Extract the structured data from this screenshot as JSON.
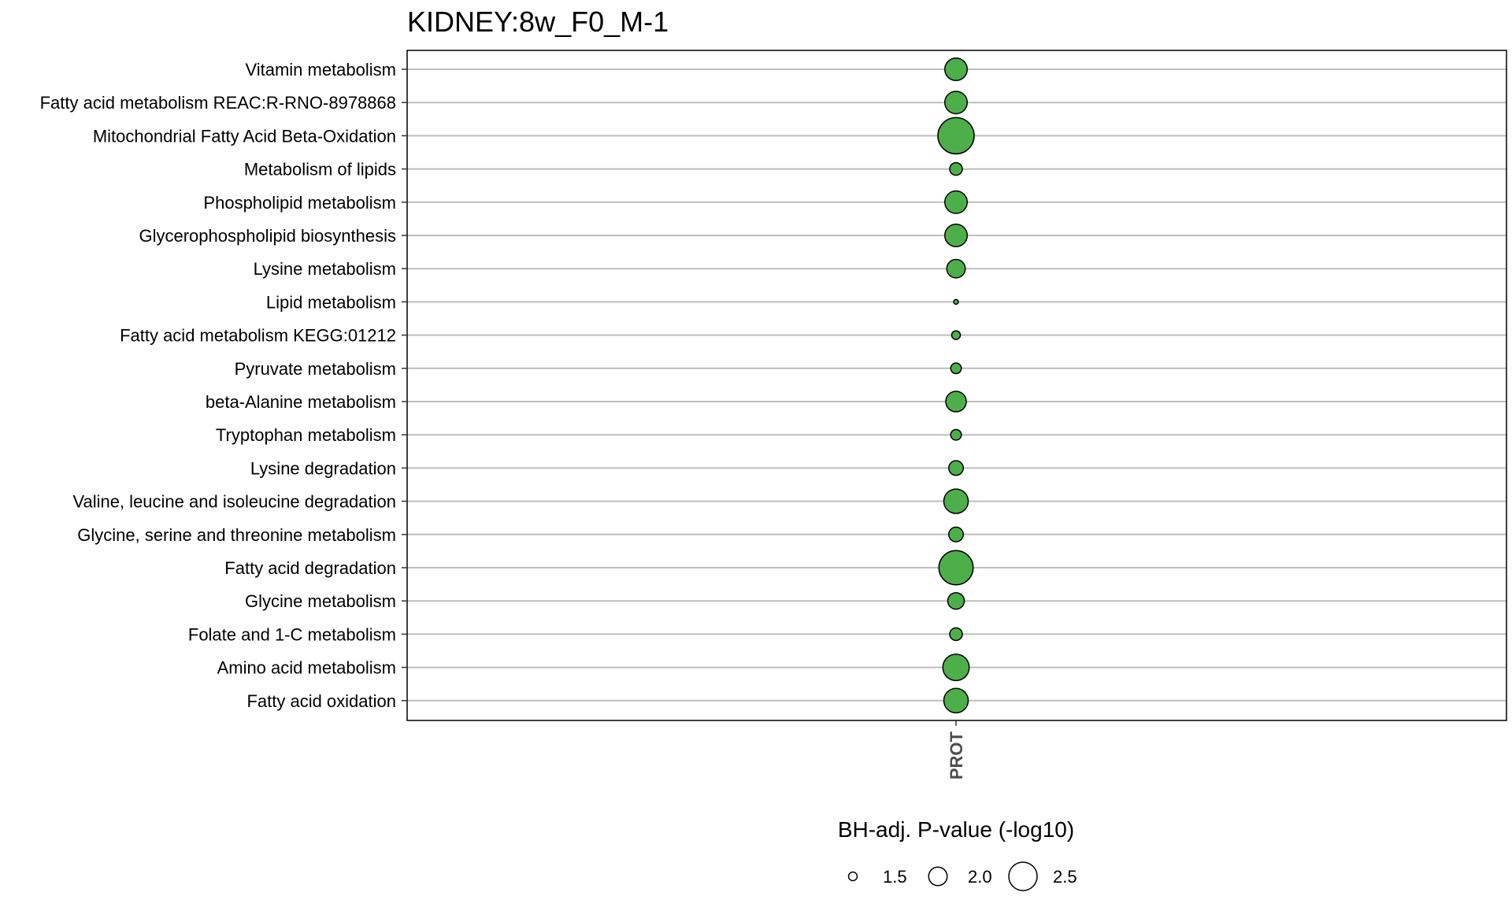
{
  "chart_data": {
    "type": "scatter",
    "title": "KIDNEY:8w_F0_M-1",
    "x_categories": [
      "PROT"
    ],
    "y_categories": [
      "Vitamin metabolism",
      "Fatty acid metabolism REAC:R-RNO-8978868",
      "Mitochondrial Fatty Acid Beta-Oxidation",
      "Metabolism of lipids",
      "Phospholipid metabolism",
      "Glycerophospholipid biosynthesis",
      "Lysine metabolism",
      "Lipid metabolism",
      "Fatty acid metabolism KEGG:01212",
      "Pyruvate metabolism",
      "beta-Alanine metabolism",
      "Tryptophan metabolism",
      "Lysine degradation",
      "Valine, leucine and isoleucine degradation",
      "Glycine, serine and threonine metabolism",
      "Fatty acid degradation",
      "Glycine metabolism",
      "Folate and 1-C metabolism",
      "Amino acid metabolism",
      "Fatty acid oxidation"
    ],
    "points": [
      {
        "y": "Vitamin metabolism",
        "x": "PROT",
        "size": 2.2
      },
      {
        "y": "Fatty acid metabolism REAC:R-RNO-8978868",
        "x": "PROT",
        "size": 2.2
      },
      {
        "y": "Mitochondrial Fatty Acid Beta-Oxidation",
        "x": "PROT",
        "size": 2.9
      },
      {
        "y": "Metabolism of lipids",
        "x": "PROT",
        "size": 1.7
      },
      {
        "y": "Phospholipid metabolism",
        "x": "PROT",
        "size": 2.2
      },
      {
        "y": "Glycerophospholipid biosynthesis",
        "x": "PROT",
        "size": 2.2
      },
      {
        "y": "Lysine metabolism",
        "x": "PROT",
        "size": 2.0
      },
      {
        "y": "Lipid metabolism",
        "x": "PROT",
        "size": 1.3
      },
      {
        "y": "Fatty acid metabolism KEGG:01212",
        "x": "PROT",
        "size": 1.5
      },
      {
        "y": "Pyruvate metabolism",
        "x": "PROT",
        "size": 1.6
      },
      {
        "y": "beta-Alanine metabolism",
        "x": "PROT",
        "size": 2.1
      },
      {
        "y": "Tryptophan metabolism",
        "x": "PROT",
        "size": 1.6
      },
      {
        "y": "Lysine degradation",
        "x": "PROT",
        "size": 1.8
      },
      {
        "y": "Valine, leucine and isoleucine degradation",
        "x": "PROT",
        "size": 2.3
      },
      {
        "y": "Glycine, serine and threonine metabolism",
        "x": "PROT",
        "size": 1.8
      },
      {
        "y": "Fatty acid degradation",
        "x": "PROT",
        "size": 2.8
      },
      {
        "y": "Glycine metabolism",
        "x": "PROT",
        "size": 1.9
      },
      {
        "y": "Folate and 1-C metabolism",
        "x": "PROT",
        "size": 1.7
      },
      {
        "y": "Amino acid metabolism",
        "x": "PROT",
        "size": 2.4
      },
      {
        "y": "Fatty acid oxidation",
        "x": "PROT",
        "size": 2.3
      }
    ],
    "legend": {
      "title": "BH-adj. P-value (-log10)",
      "position": "bottom",
      "items": [
        {
          "label": "1.5",
          "value": 1.5
        },
        {
          "label": "2.0",
          "value": 2.0
        },
        {
          "label": "2.5",
          "value": 2.5
        }
      ]
    },
    "point_color": "#4daf4a",
    "point_border_color": "#000000",
    "grid": "horizontal"
  }
}
